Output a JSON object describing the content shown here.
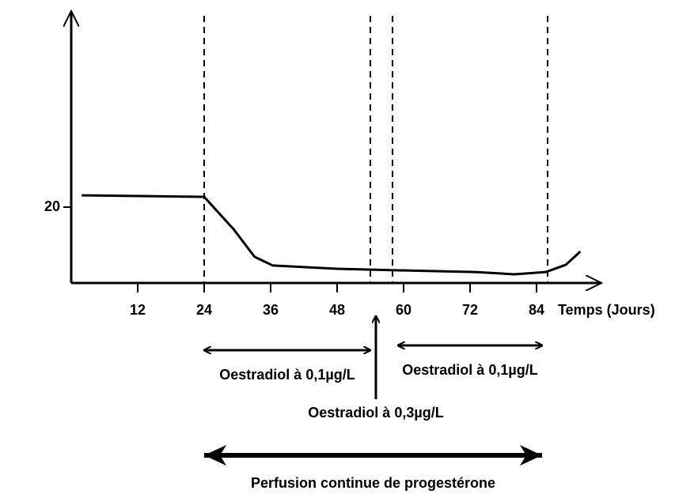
{
  "chart_data": {
    "type": "line",
    "x_label": "Temps (Jours)",
    "x": [
      1.9,
      24,
      29.3,
      33.1,
      36.4,
      47.9,
      60.3,
      72.9,
      80,
      85.7,
      89.3,
      91.9
    ],
    "series": [
      {
        "color": "#000000",
        "values": [
          23.1,
          22.7,
          14.2,
          6.9,
          4.6,
          3.75,
          3.3,
          2.9,
          2.3,
          2.9,
          4.8,
          8.3
        ]
      }
    ],
    "xlim": [
      0,
      96
    ],
    "ylim": [
      0,
      70
    ],
    "xticks": [
      12,
      24,
      36,
      48,
      60,
      72,
      84
    ],
    "yticks": [
      20
    ],
    "dashed_lines": [
      24,
      54,
      58,
      86
    ],
    "periods": [
      {
        "label": "Oestradiol à 0,1µg/L",
        "x": [
          24,
          54
        ]
      },
      {
        "label": "Oestradiol à 0,1µg/L",
        "x": [
          59,
          85
        ]
      }
    ],
    "injection": {
      "label": "Oestradiol à 0,3µg/L",
      "x": 55
    },
    "perfusion": {
      "label": "Perfusion continue de progestérone",
      "x": [
        24,
        85
      ]
    }
  }
}
